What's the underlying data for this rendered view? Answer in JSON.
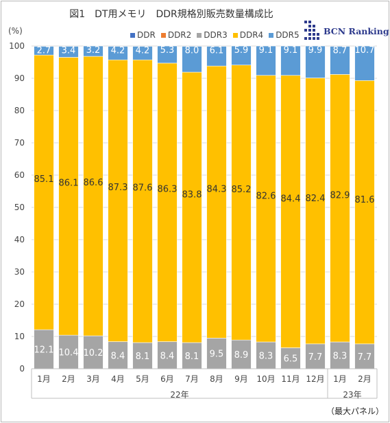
{
  "title": "図1　DT用メモリ　DDR規格別販売数量構成比",
  "y_unit": "(%)",
  "logo": "BCN Ranking",
  "note": "（最大パネル）",
  "legend": [
    {
      "label": "DDR",
      "color": "#4472c4"
    },
    {
      "label": "DDR2",
      "color": "#ed7d31"
    },
    {
      "label": "DDR3",
      "color": "#a5a5a5"
    },
    {
      "label": "DDR4",
      "color": "#ffc000"
    },
    {
      "label": "DDR5",
      "color": "#5b9bd5"
    }
  ],
  "chart_data": {
    "type": "bar",
    "stacked": true,
    "categories": [
      "1月",
      "2月",
      "3月",
      "4月",
      "5月",
      "6月",
      "7月",
      "8月",
      "9月",
      "10月",
      "11月",
      "12月",
      "1月",
      "2月"
    ],
    "groups": [
      {
        "label": "22年",
        "count": 12
      },
      {
        "label": "23年",
        "count": 2
      }
    ],
    "series": [
      {
        "name": "DDR3",
        "color": "#a5a5a5",
        "values": [
          12.1,
          10.4,
          10.2,
          8.4,
          8.1,
          8.4,
          8.1,
          9.5,
          8.9,
          8.3,
          6.5,
          7.7,
          8.3,
          7.7
        ]
      },
      {
        "name": "DDR4",
        "color": "#ffc000",
        "values": [
          85.1,
          86.1,
          86.6,
          87.3,
          87.6,
          86.3,
          83.8,
          84.3,
          85.2,
          82.6,
          84.4,
          82.4,
          82.9,
          81.6
        ]
      },
      {
        "name": "DDR5",
        "color": "#5b9bd5",
        "values": [
          2.7,
          3.4,
          3.2,
          4.2,
          4.2,
          5.3,
          8.0,
          6.1,
          5.9,
          9.1,
          9.1,
          9.9,
          8.7,
          10.7
        ]
      }
    ],
    "ylim": [
      0,
      100
    ],
    "yticks": [
      0,
      10,
      20,
      30,
      40,
      50,
      60,
      70,
      80,
      90,
      100
    ],
    "grid": true,
    "legend_position": "top"
  }
}
